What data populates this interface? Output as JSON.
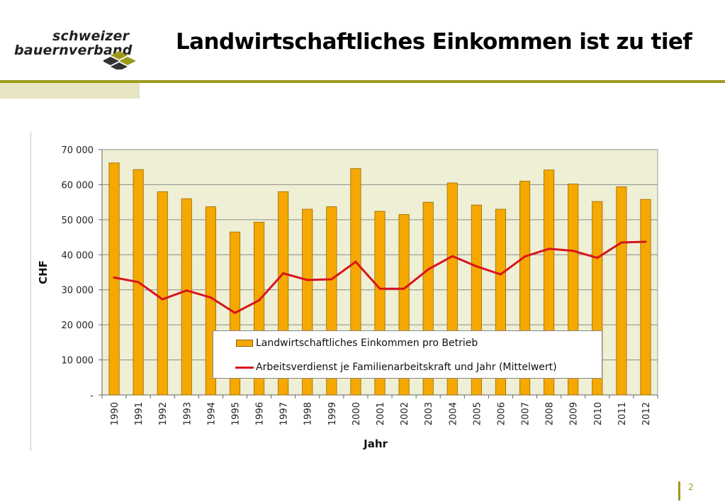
{
  "brand": {
    "line1": "schweizer",
    "line2": "bauernverband",
    "colors": {
      "primary": "#9c9a1e",
      "light": "#e6e4c1",
      "mark_dark": "#333333"
    }
  },
  "slide": {
    "title": "Landwirtschaftliches Einkommen ist zu tief",
    "page_number": "2"
  },
  "chart_data": {
    "type": "bar",
    "categories": [
      "1990",
      "1991",
      "1992",
      "1993",
      "1994",
      "1995",
      "1996",
      "1997",
      "1998",
      "1999",
      "2000",
      "2001",
      "2002",
      "2003",
      "2004",
      "2005",
      "2006",
      "2007",
      "2008",
      "2009",
      "2010",
      "2011",
      "2012"
    ],
    "series": [
      {
        "name": "Landwirtschaftliches Einkommen pro Betrieb",
        "type": "bar",
        "color": "#f5a800",
        "values": [
          66200,
          64300,
          58000,
          56000,
          53700,
          46500,
          49300,
          58000,
          53000,
          53700,
          64600,
          52400,
          51500,
          55000,
          60500,
          54200,
          53000,
          61000,
          64200,
          60200,
          55200,
          59400,
          55800
        ]
      },
      {
        "name": "Arbeitsverdienst je Familienarbeitskraft und Jahr (Mittelwert)",
        "type": "line",
        "color": "#d9141c",
        "values": [
          33500,
          32200,
          27300,
          29800,
          27800,
          23400,
          27000,
          34700,
          32800,
          33000,
          38000,
          30300,
          30300,
          35800,
          39600,
          36700,
          34400,
          39500,
          41700,
          41100,
          39100,
          43500,
          43700
        ]
      }
    ],
    "xlabel": "Jahr",
    "ylabel": "CHF",
    "ylim": [
      0,
      70000
    ],
    "yticks": [
      0,
      10000,
      20000,
      30000,
      40000,
      50000,
      60000,
      70000
    ],
    "ytick_labels": [
      "-",
      "10 000",
      "20 000",
      "30 000",
      "40 000",
      "50 000",
      "60 000",
      "70 000"
    ],
    "grid": true,
    "legend_position": "bottom-center",
    "plot_background": "#eeefd4"
  }
}
